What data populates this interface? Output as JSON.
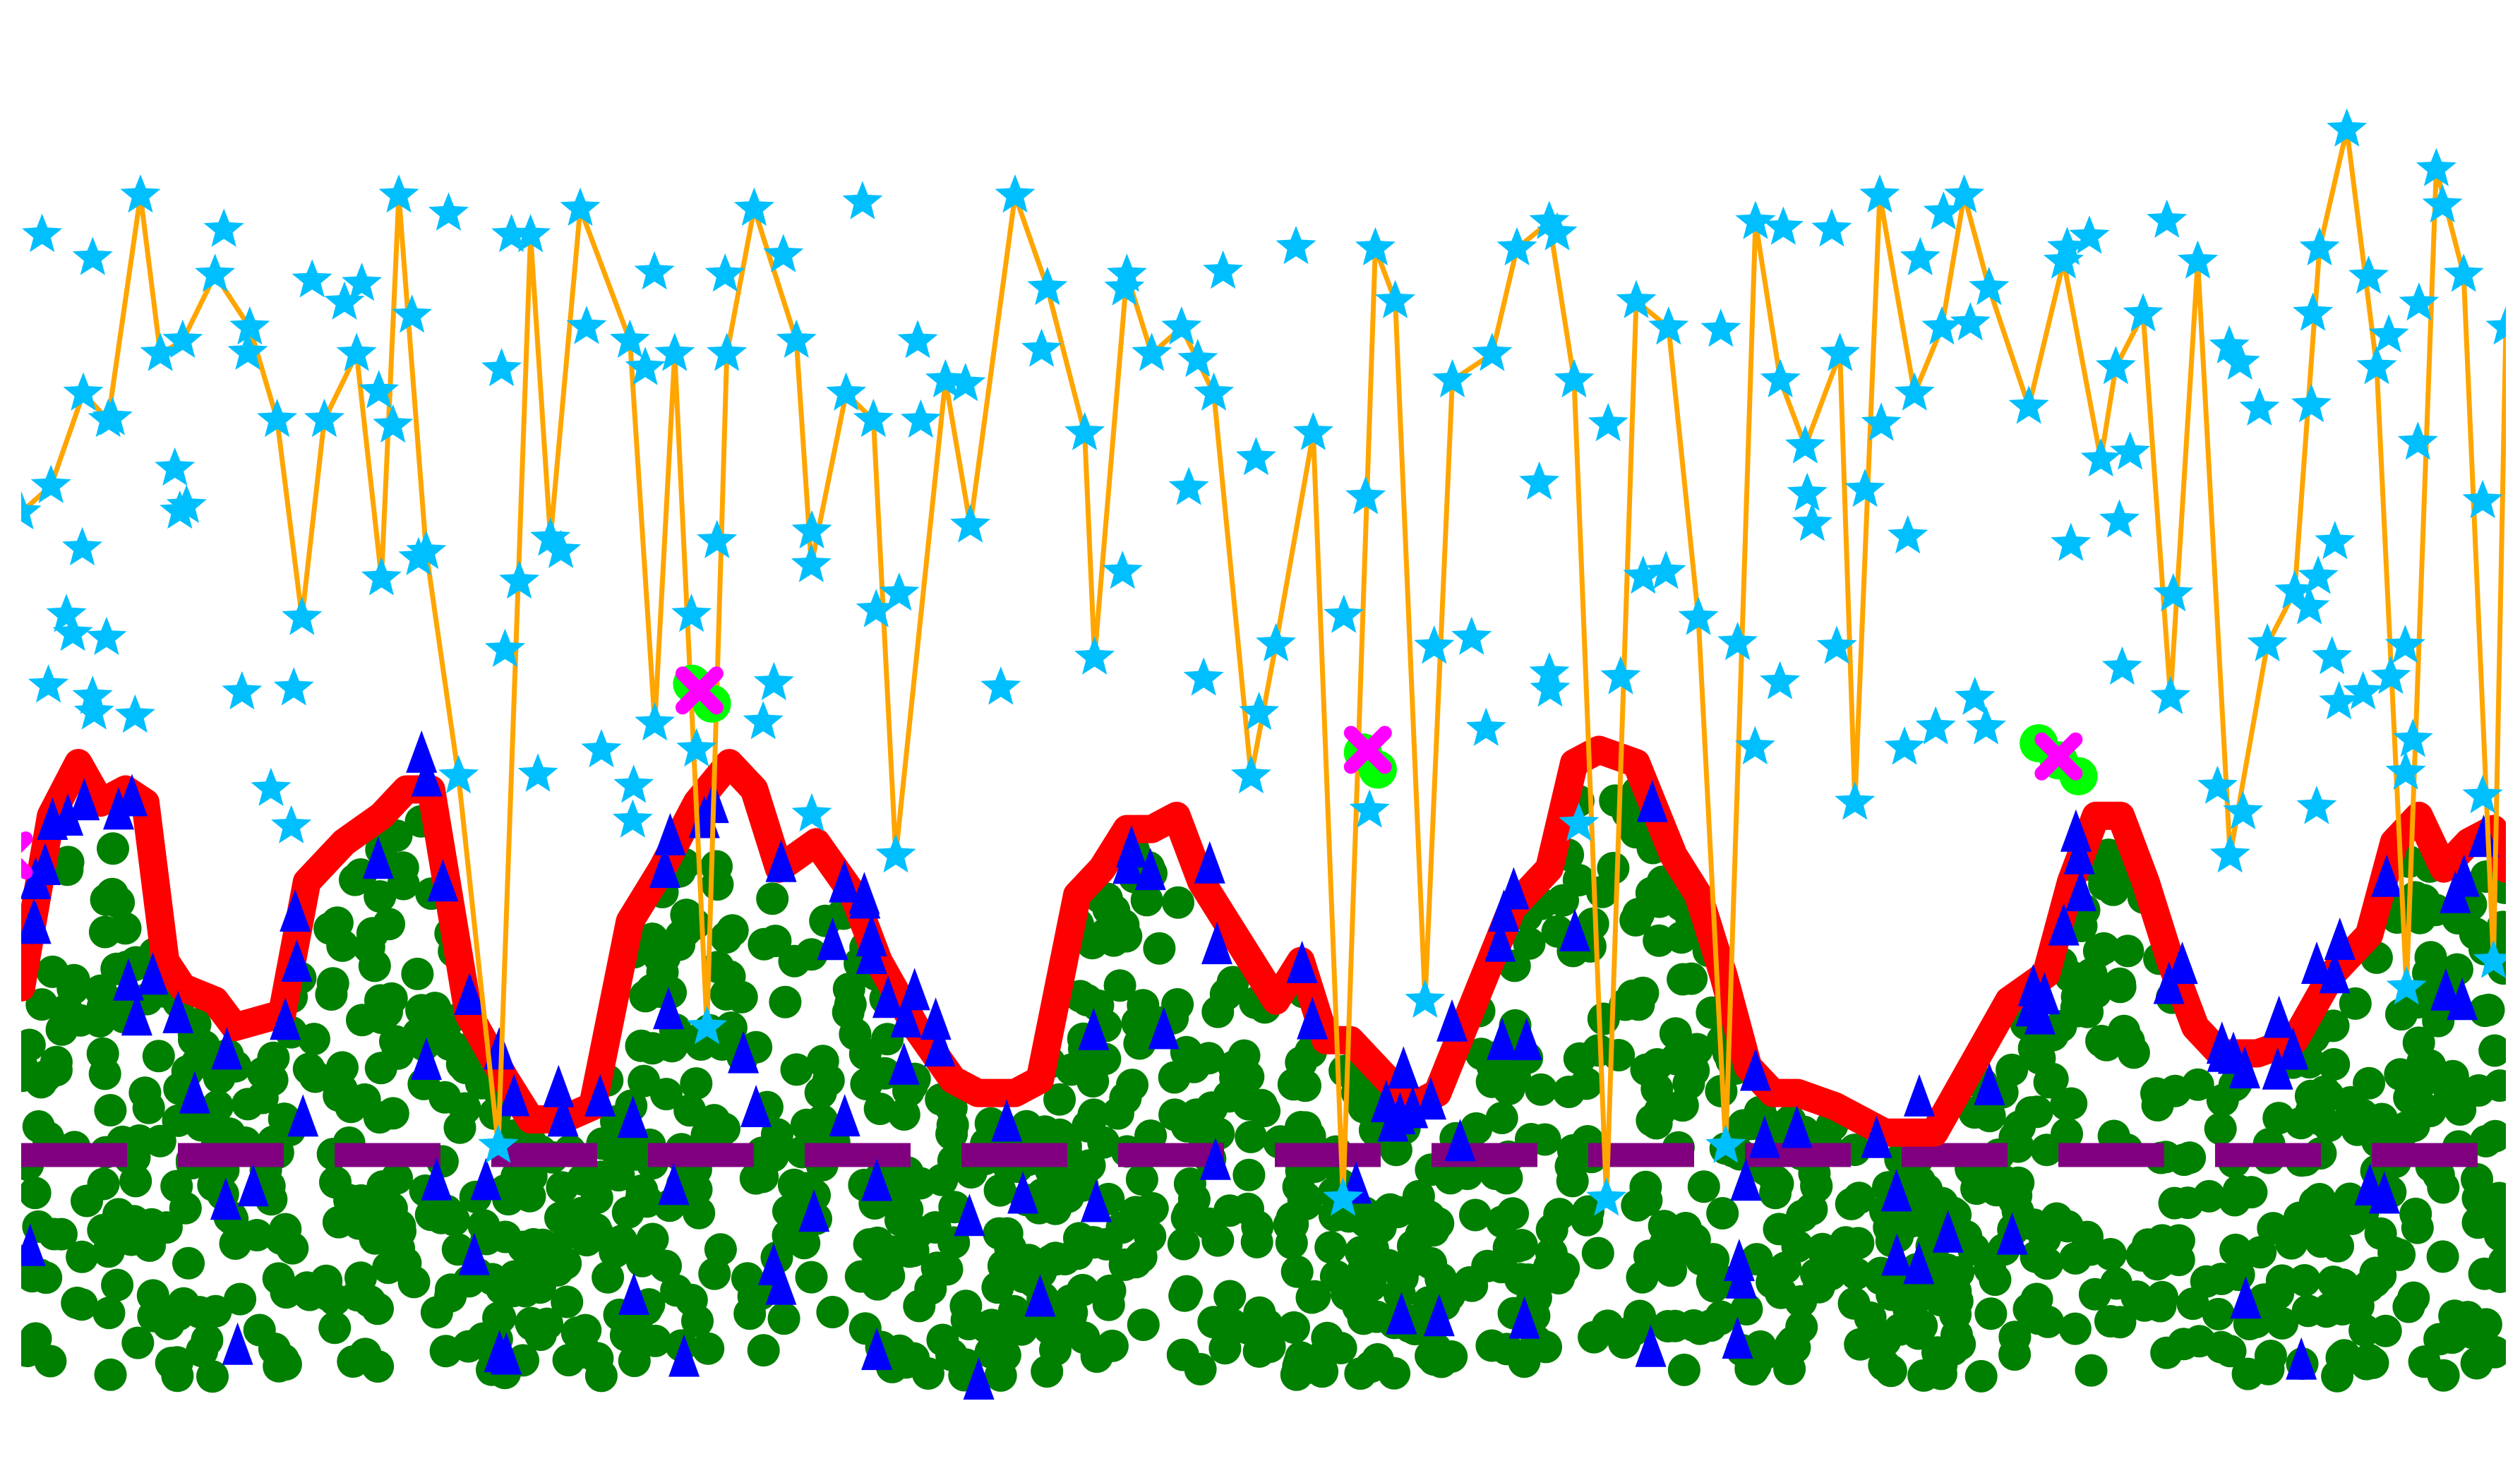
{
  "chart_data": {
    "type": "scatter",
    "title": "",
    "xlabel": "",
    "ylabel": "",
    "xlim": [
      0,
      100
    ],
    "ylim": [
      0,
      100
    ],
    "grid": false,
    "legend": "none",
    "colors": {
      "gold_line": "#ffa500",
      "gold_stars": "#00bfff",
      "red_line": "#ff0000",
      "green_points": "#008000",
      "blue_triangles": "#0000ff",
      "purple_dash": "#800080",
      "magenta_x": "#ff00ff",
      "lime_points": "#00ff00"
    },
    "series": [
      {
        "kind": "line",
        "role": "gold_line",
        "x": [
          0,
          1.2,
          2.5,
          3.5,
          4.8,
          5.6,
          6.5,
          7.8,
          9.2,
          10.3,
          11.3,
          12.2,
          13.5,
          14.5,
          15.2,
          16.3,
          17.6,
          19.2,
          20.5,
          21.3,
          22.5,
          24.5,
          25.5,
          26.3,
          27.6,
          28.4,
          29.5,
          31.2,
          31.8,
          33.2,
          34.3,
          35.2,
          37.2,
          38.2,
          40.0,
          41.3,
          42.8,
          43.2,
          44.5,
          45.5,
          46.7,
          48.0,
          49.5,
          50.5,
          52.0,
          53.2,
          54.5,
          55.3,
          56.5,
          57.6,
          59.2,
          60.2,
          61.5,
          62.5,
          63.8,
          65.0,
          66.3,
          67.5,
          68.6,
          69.8,
          70.8,
          71.8,
          73.2,
          73.8,
          74.8,
          76.2,
          77.3,
          78.2,
          79.2,
          80.8,
          82.2,
          83.7,
          84.3,
          85.4,
          86.5,
          87.6,
          88.9,
          90.4,
          91.5,
          92.5,
          93.6,
          94.8,
          96.0,
          97.2,
          98.3,
          99.5,
          100
        ],
        "y": [
          66,
          68,
          75,
          73,
          90,
          78,
          79,
          84,
          80,
          73,
          58,
          73,
          78,
          61,
          90,
          63,
          46,
          18,
          87,
          64,
          89,
          79,
          50,
          78,
          27,
          78,
          89,
          79,
          62,
          75,
          73,
          40,
          76,
          65,
          90,
          83,
          72,
          55,
          84,
          78,
          80,
          75,
          46,
          56,
          72,
          14,
          86,
          82,
          29,
          76,
          78,
          86,
          88,
          76,
          14,
          82,
          80,
          58,
          18,
          88,
          76,
          71,
          78,
          44,
          90,
          75,
          80,
          90,
          83,
          74,
          85,
          70,
          77,
          81,
          52,
          85,
          40,
          56,
          60,
          86,
          95,
          77,
          30,
          92,
          84,
          32,
          80
        ]
      },
      {
        "kind": "line",
        "role": "red_line",
        "x": [
          0,
          1.2,
          2.3,
          3.2,
          4.2,
          5.0,
          5.8,
          6.5,
          7.8,
          8.6,
          10.5,
          11.5,
          13.0,
          14.5,
          15.5,
          16.5,
          18.0,
          19.5,
          20.5,
          21.8,
          23.0,
          24.5,
          25.8,
          27.2,
          28.5,
          29.5,
          30.5,
          32.0,
          33.5,
          34.5,
          36.0,
          37.5,
          38.5,
          40.0,
          41.0,
          42.5,
          43.5,
          44.5,
          45.5,
          46.5,
          47.5,
          48.5,
          49.5,
          50.5,
          51.5,
          52.5,
          53.5,
          55.0,
          56.0,
          57.0,
          58.5,
          60.0,
          61.5,
          62.5,
          63.5,
          65.0,
          66.5,
          67.5,
          68.5,
          69.5,
          70.5,
          71.5,
          73.0,
          75.0,
          77.0,
          78.5,
          80.0,
          81.5,
          82.5,
          83.5,
          84.5,
          85.5,
          86.5,
          87.5,
          88.5,
          90.0,
          91.5,
          93.0,
          94.5,
          95.5,
          96.5,
          97.5,
          98.5,
          99.5,
          100
        ],
        "y": [
          30,
          43,
          47,
          44,
          45,
          44,
          32,
          30,
          29,
          27,
          28,
          38,
          41,
          43,
          45,
          45,
          28,
          23,
          20,
          20,
          21,
          35,
          39,
          44,
          47,
          45,
          39,
          41,
          37,
          32,
          27,
          23,
          22,
          22,
          23,
          37,
          39,
          42,
          42,
          43,
          38,
          35,
          32,
          29,
          32,
          26,
          26,
          23,
          21,
          22,
          29,
          36,
          39,
          47,
          48,
          47,
          40,
          37,
          31,
          24,
          22,
          22,
          21,
          19,
          19,
          24,
          29,
          31,
          38,
          43,
          43,
          38,
          32,
          27,
          25,
          25,
          26,
          31,
          34,
          41,
          43,
          39,
          41,
          42,
          39
        ]
      },
      {
        "kind": "line",
        "role": "purple_dash",
        "x": [
          0,
          100
        ],
        "y": [
          17.3,
          17.3
        ]
      },
      {
        "kind": "scatter",
        "role": "gold_stars",
        "count": 220
      },
      {
        "kind": "scatter",
        "role": "green_points",
        "count": 1400
      },
      {
        "kind": "scatter",
        "role": "blue_triangles",
        "count": 150
      },
      {
        "kind": "scatter",
        "role": "lime_points",
        "x": [
          27.0,
          27.8,
          54.0,
          54.6,
          81.2,
          82.0,
          82.8
        ],
        "y": [
          53.0,
          51.5,
          47.8,
          46.5,
          48.5,
          47.2,
          46.0
        ]
      },
      {
        "kind": "scatter",
        "role": "magenta_x",
        "x": [
          -0.5,
          27.3,
          54.2,
          82.0
        ],
        "y": [
          40.0,
          52.5,
          48.0,
          47.5
        ]
      }
    ]
  }
}
